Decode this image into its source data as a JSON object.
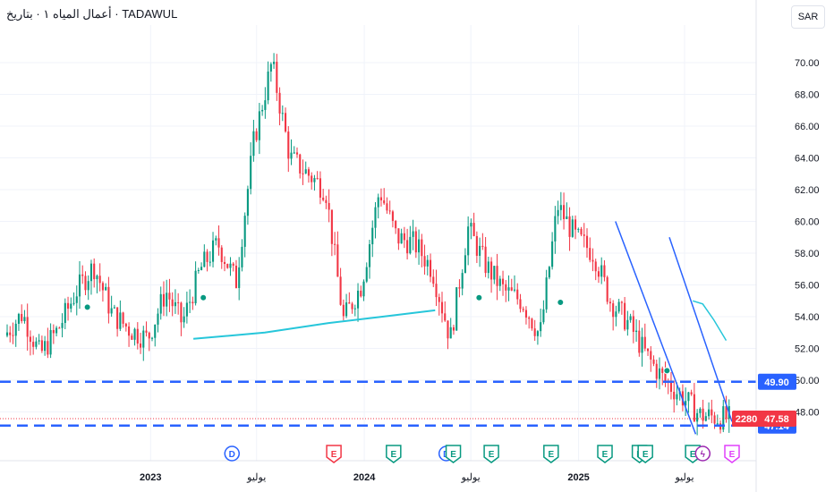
{
  "header": {
    "title": "أعمال المياه ١ · بتاريخ · TADAWUL"
  },
  "currency_button": "SAR",
  "chart_data": {
    "type": "candlestick",
    "ylim": [
      46,
      72
    ],
    "y_ticks": [
      "70.00",
      "68.00",
      "66.00",
      "64.00",
      "62.00",
      "60.00",
      "58.00",
      "56.00",
      "54.00",
      "52.00",
      "50.00",
      "48.00"
    ],
    "x_ticks": [
      {
        "label": "2023",
        "major": true,
        "date": "2023-01-01"
      },
      {
        "label": "يوليو",
        "major": false,
        "date": "2023-07-01"
      },
      {
        "label": "2024",
        "major": true,
        "date": "2024-01-01"
      },
      {
        "label": "يوليو",
        "major": false,
        "date": "2024-07-01"
      },
      {
        "label": "2025",
        "major": true,
        "date": "2025-01-01"
      },
      {
        "label": "يوليو",
        "major": false,
        "date": "2025-07-01"
      }
    ],
    "date_range": [
      "2022-05-01",
      "2025-09-20"
    ],
    "price_series": [
      [
        "2022-05-01",
        52.8
      ],
      [
        "2022-06-01",
        54.2
      ],
      [
        "2022-07-01",
        51.6
      ],
      [
        "2022-08-01",
        53.2
      ],
      [
        "2022-09-01",
        55.6
      ],
      [
        "2022-10-01",
        57.2
      ],
      [
        "2022-11-01",
        54.2
      ],
      [
        "2022-12-01",
        53.2
      ],
      [
        "2023-01-01",
        52.6
      ],
      [
        "2023-02-01",
        55.6
      ],
      [
        "2023-03-01",
        53.6
      ],
      [
        "2023-04-01",
        57.0
      ],
      [
        "2023-05-01",
        58.6
      ],
      [
        "2023-06-01",
        56.2
      ],
      [
        "2023-07-01",
        65.0
      ],
      [
        "2023-08-01",
        70.0
      ],
      [
        "2023-09-01",
        64.0
      ],
      [
        "2023-10-01",
        63.0
      ],
      [
        "2023-11-01",
        62.0
      ],
      [
        "2023-12-01",
        53.8
      ],
      [
        "2024-01-01",
        56.0
      ],
      [
        "2024-02-01",
        62.0
      ],
      [
        "2024-03-01",
        59.0
      ],
      [
        "2024-04-01",
        58.6
      ],
      [
        "2024-05-01",
        57.0
      ],
      [
        "2024-06-01",
        52.6
      ],
      [
        "2024-07-01",
        59.6
      ],
      [
        "2024-08-01",
        57.2
      ],
      [
        "2024-09-01",
        55.6
      ],
      [
        "2024-10-01",
        55.0
      ],
      [
        "2024-11-01",
        52.8
      ],
      [
        "2024-12-01",
        61.0
      ],
      [
        "2025-01-01",
        59.0
      ],
      [
        "2025-02-01",
        58.0
      ],
      [
        "2025-03-01",
        55.0
      ],
      [
        "2025-04-01",
        53.6
      ],
      [
        "2025-05-01",
        51.6
      ],
      [
        "2025-06-01",
        50.0
      ],
      [
        "2025-07-01",
        49.0
      ],
      [
        "2025-08-01",
        47.8
      ],
      [
        "2025-09-20",
        47.58
      ]
    ],
    "moving_average": [
      [
        "2023-03-15",
        52.6
      ],
      [
        "2023-07-15",
        53.0
      ],
      [
        "2023-11-01",
        53.6
      ],
      [
        "2024-02-01",
        54.0
      ],
      [
        "2024-05-01",
        54.4
      ]
    ],
    "moving_average_2": [
      [
        "2025-07-15",
        55.0
      ],
      [
        "2025-08-01",
        54.8
      ],
      [
        "2025-08-20",
        53.8
      ],
      [
        "2025-09-10",
        52.5
      ]
    ],
    "channel_upper": [
      [
        "2025-06-05",
        59.0
      ],
      [
        "2025-09-20",
        47.4
      ]
    ],
    "channel_lower": [
      [
        "2025-03-05",
        60.0
      ],
      [
        "2025-07-20",
        46.6
      ]
    ],
    "horizontal_levels": [
      {
        "value": 49.9,
        "label": "49.90",
        "color": "#2962ff"
      },
      {
        "value": 47.14,
        "label": "47.14",
        "color": "#2962ff"
      }
    ],
    "price_badges": [
      {
        "label": "47.58",
        "value": 47.58,
        "color": "#f23645"
      },
      {
        "label": "2280",
        "color": "#f23645"
      }
    ],
    "dividend_markers": [
      [
        "2022-09-15",
        54.6
      ],
      [
        "2023-04-01",
        55.2
      ],
      [
        "2024-07-15",
        55.2
      ],
      [
        "2024-12-01",
        54.9
      ],
      [
        "2025-06-01",
        50.6
      ]
    ],
    "events": [
      {
        "label": "D",
        "date": "2023-05-20",
        "color": "#2962ff"
      },
      {
        "label": "E",
        "date": "2023-11-10",
        "color": "#f23645"
      },
      {
        "label": "E",
        "date": "2024-02-20",
        "color": "#089981"
      },
      {
        "label": "D",
        "date": "2024-05-20",
        "color": "#2962ff"
      },
      {
        "label": "E",
        "date": "2024-06-01",
        "color": "#089981"
      },
      {
        "label": "E",
        "date": "2024-08-05",
        "color": "#089981"
      },
      {
        "label": "E",
        "date": "2024-11-15",
        "color": "#089981"
      },
      {
        "label": "E",
        "date": "2025-02-15",
        "color": "#089981"
      },
      {
        "label": "E",
        "date": "2025-04-15",
        "color": "#089981"
      },
      {
        "label": "E",
        "date": "2025-04-25",
        "color": "#089981"
      },
      {
        "label": "E",
        "date": "2025-07-15",
        "color": "#089981"
      },
      {
        "label": "ϟ",
        "date": "2025-08-01",
        "color": "#9c27b0"
      },
      {
        "label": "E",
        "date": "2025-09-20",
        "color": "#e040fb"
      }
    ],
    "colors": {
      "up": "#089981",
      "down": "#f23645",
      "ma": "#26c6da",
      "channel": "#2962ff",
      "level": "#2962ff"
    }
  }
}
